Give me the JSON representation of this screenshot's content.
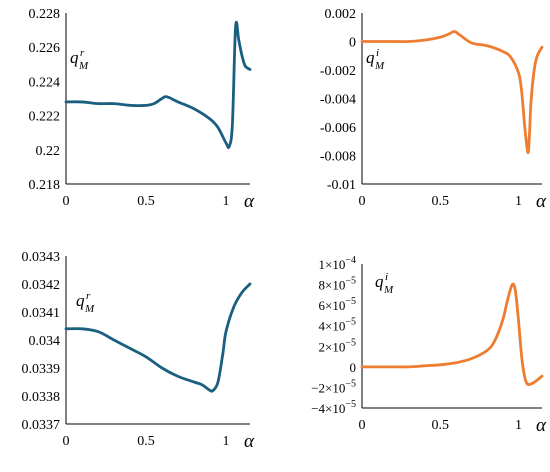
{
  "chart_data": [
    {
      "type": "line",
      "color": "#1a5f7f",
      "x_label": "α",
      "y_label": {
        "base": "q",
        "sup": "r",
        "sub": "M"
      },
      "xlim": [
        0,
        1.15
      ],
      "ylim": [
        0.218,
        0.228
      ],
      "x_ticks": [
        {
          "value": 0,
          "label": "0"
        },
        {
          "value": 0.5,
          "label": "0.5"
        },
        {
          "value": 1,
          "label": "1"
        }
      ],
      "y_ticks": [
        {
          "value": 0.218,
          "label": "0.218"
        },
        {
          "value": 0.22,
          "label": "0.22"
        },
        {
          "value": 0.222,
          "label": "0.222"
        },
        {
          "value": 0.224,
          "label": "0.224"
        },
        {
          "value": 0.226,
          "label": "0.226"
        },
        {
          "value": 0.228,
          "label": "0.228"
        }
      ],
      "x": [
        0,
        0.1,
        0.2,
        0.3,
        0.4,
        0.5,
        0.55,
        0.6,
        0.63,
        0.7,
        0.8,
        0.9,
        0.95,
        1.0,
        1.02,
        1.04,
        1.06,
        1.08,
        1.1,
        1.12,
        1.15
      ],
      "y": [
        0.2228,
        0.2228,
        0.2227,
        0.2227,
        0.2226,
        0.2226,
        0.2227,
        0.223,
        0.2231,
        0.2228,
        0.2224,
        0.2218,
        0.2213,
        0.2204,
        0.2202,
        0.2215,
        0.2272,
        0.2264,
        0.2255,
        0.2249,
        0.2247
      ]
    },
    {
      "type": "line",
      "color": "#ed7d31",
      "x_label": "α",
      "y_label": {
        "base": "q",
        "sup": "i",
        "sub": "M"
      },
      "xlim": [
        0,
        1.15
      ],
      "ylim": [
        -0.01,
        0.002
      ],
      "x_ticks": [
        {
          "value": 0,
          "label": "0"
        },
        {
          "value": 0.5,
          "label": "0.5"
        },
        {
          "value": 1,
          "label": "1"
        }
      ],
      "y_ticks": [
        {
          "value": -0.01,
          "label": "-0.01"
        },
        {
          "value": -0.008,
          "label": "-0.008"
        },
        {
          "value": -0.006,
          "label": "-0.006"
        },
        {
          "value": -0.004,
          "label": "-0.004"
        },
        {
          "value": -0.002,
          "label": "-0.002"
        },
        {
          "value": 0,
          "label": "0"
        },
        {
          "value": 0.002,
          "label": "0.002"
        }
      ],
      "x": [
        0,
        0.1,
        0.2,
        0.3,
        0.4,
        0.5,
        0.55,
        0.59,
        0.62,
        0.7,
        0.8,
        0.9,
        0.95,
        1.0,
        1.02,
        1.04,
        1.06,
        1.07,
        1.08,
        1.1,
        1.12,
        1.15
      ],
      "y": [
        0.0,
        0.0,
        0.0,
        0.0,
        0.0001,
        0.0003,
        0.0005,
        0.0007,
        0.0005,
        -0.0001,
        -0.0003,
        -0.0007,
        -0.0011,
        -0.0022,
        -0.0035,
        -0.006,
        -0.0078,
        -0.0065,
        -0.0042,
        -0.002,
        -0.001,
        -0.0004
      ]
    },
    {
      "type": "line",
      "color": "#1a5f7f",
      "x_label": "α",
      "y_label": {
        "base": "q",
        "sup": "r",
        "sub": "M"
      },
      "xlim": [
        0,
        1.15
      ],
      "ylim": [
        0.0337,
        0.0343
      ],
      "x_ticks": [
        {
          "value": 0,
          "label": "0"
        },
        {
          "value": 0.5,
          "label": "0.5"
        },
        {
          "value": 1,
          "label": "1"
        }
      ],
      "y_ticks": [
        {
          "value": 0.0337,
          "label": "0.0337"
        },
        {
          "value": 0.0338,
          "label": "0.0338"
        },
        {
          "value": 0.0339,
          "label": "0.0339"
        },
        {
          "value": 0.034,
          "label": "0.034"
        },
        {
          "value": 0.0341,
          "label": "0.0341"
        },
        {
          "value": 0.0342,
          "label": "0.0342"
        },
        {
          "value": 0.0343,
          "label": "0.0343"
        }
      ],
      "x": [
        0,
        0.1,
        0.2,
        0.3,
        0.4,
        0.5,
        0.6,
        0.7,
        0.8,
        0.85,
        0.9,
        0.92,
        0.95,
        0.98,
        1.0,
        1.05,
        1.1,
        1.15
      ],
      "y": [
        0.03404,
        0.03404,
        0.03403,
        0.034,
        0.03397,
        0.03394,
        0.0339,
        0.03387,
        0.03385,
        0.03384,
        0.03382,
        0.03382,
        0.03385,
        0.03395,
        0.03403,
        0.03412,
        0.03417,
        0.0342
      ]
    },
    {
      "type": "line",
      "color": "#ed7d31",
      "x_label": "α",
      "y_label": {
        "base": "q",
        "sup": "i",
        "sub": "M"
      },
      "xlim": [
        0,
        1.15
      ],
      "ylim": [
        -4e-05,
        0.0001
      ],
      "x_ticks": [
        {
          "value": 0,
          "label": "0"
        },
        {
          "value": 0.5,
          "label": "0.5"
        },
        {
          "value": 1,
          "label": "1"
        }
      ],
      "y_ticks": [
        {
          "value": -4e-05,
          "label": "−4×10",
          "exp": "−5"
        },
        {
          "value": -2e-05,
          "label": "−2×10",
          "exp": "−5"
        },
        {
          "value": 0,
          "label": "0",
          "exp": ""
        },
        {
          "value": 2e-05,
          "label": "2×10",
          "exp": "−5"
        },
        {
          "value": 4e-05,
          "label": "4×10",
          "exp": "−5"
        },
        {
          "value": 6e-05,
          "label": "6×10",
          "exp": "−5"
        },
        {
          "value": 8e-05,
          "label": "8×10",
          "exp": "−5"
        },
        {
          "value": 0.0001,
          "label": "1×10",
          "exp": "−4"
        }
      ],
      "x": [
        0,
        0.1,
        0.2,
        0.3,
        0.4,
        0.5,
        0.6,
        0.7,
        0.8,
        0.85,
        0.9,
        0.93,
        0.96,
        0.98,
        1.0,
        1.02,
        1.04,
        1.06,
        1.1,
        1.15
      ],
      "y": [
        0.0,
        0.0,
        0.0,
        0.0,
        1e-06,
        2e-06,
        4e-06,
        8e-06,
        1.6e-05,
        2.6e-05,
        4.6e-05,
        6.5e-05,
        8e-05,
        7.4e-05,
        4.5e-05,
        1e-05,
        -1e-05,
        -1.7e-05,
        -1.5e-05,
        -9e-06
      ]
    }
  ]
}
